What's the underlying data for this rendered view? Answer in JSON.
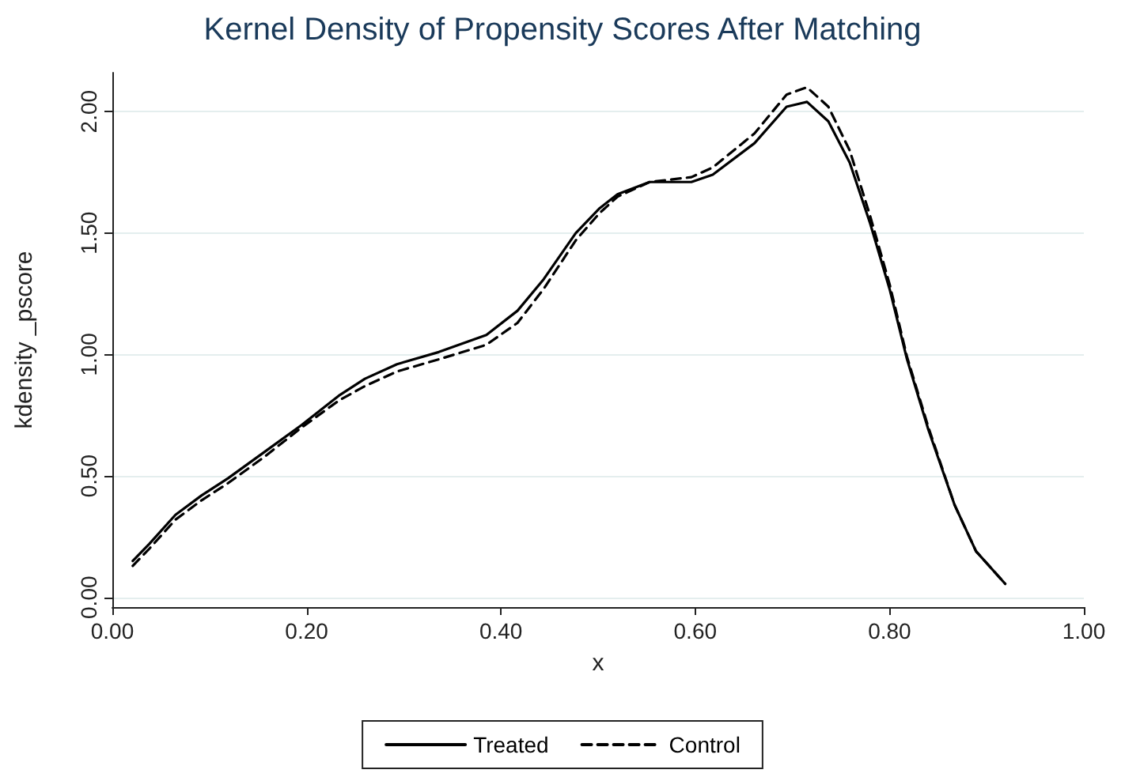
{
  "chart_data": {
    "type": "line",
    "title": "Kernel Density of Propensity Scores After Matching",
    "xlabel": "x",
    "ylabel": "kdensity _pscore",
    "xlim": [
      0,
      1
    ],
    "xticks": [
      {
        "value": 0,
        "label": "0.00"
      },
      {
        "value": 0.2,
        "label": "0.20"
      },
      {
        "value": 0.4,
        "label": "0.40"
      },
      {
        "value": 0.6,
        "label": "0.60"
      },
      {
        "value": 0.8,
        "label": "0.80"
      },
      {
        "value": 1,
        "label": "1.00"
      }
    ],
    "ylim": [
      -0.04,
      2.16
    ],
    "yticks": [
      {
        "value": 0,
        "label": "0.00"
      },
      {
        "value": 0.5,
        "label": "0.50"
      },
      {
        "value": 1,
        "label": "1.00"
      },
      {
        "value": 1.5,
        "label": "1.50"
      },
      {
        "value": 2,
        "label": "2.00"
      }
    ],
    "grid": "y",
    "legend": "bottom",
    "marker": "none",
    "series": [
      {
        "name": "Treated",
        "color": "#000000",
        "line_style": "solid",
        "x": [
          0.021,
          0.038,
          0.065,
          0.092,
          0.119,
          0.157,
          0.195,
          0.233,
          0.26,
          0.293,
          0.336,
          0.385,
          0.417,
          0.444,
          0.477,
          0.501,
          0.52,
          0.553,
          0.596,
          0.618,
          0.661,
          0.694,
          0.715,
          0.737,
          0.759,
          0.78,
          0.8,
          0.818,
          0.84,
          0.867,
          0.889,
          0.919
        ],
        "values": [
          0.15,
          0.22,
          0.34,
          0.42,
          0.49,
          0.6,
          0.71,
          0.83,
          0.9,
          0.96,
          1.01,
          1.08,
          1.18,
          1.31,
          1.5,
          1.6,
          1.66,
          1.71,
          1.71,
          1.74,
          1.87,
          2.02,
          2.04,
          1.96,
          1.79,
          1.54,
          1.27,
          0.98,
          0.69,
          0.38,
          0.19,
          0.056
        ]
      },
      {
        "name": "Control",
        "color": "#000000",
        "line_style": "dashed",
        "x": [
          0.021,
          0.038,
          0.065,
          0.092,
          0.119,
          0.157,
          0.195,
          0.233,
          0.26,
          0.293,
          0.336,
          0.385,
          0.417,
          0.444,
          0.477,
          0.501,
          0.52,
          0.553,
          0.596,
          0.618,
          0.661,
          0.694,
          0.715,
          0.737,
          0.759,
          0.78,
          0.8,
          0.818,
          0.84,
          0.867,
          0.889,
          0.919
        ],
        "values": [
          0.13,
          0.2,
          0.32,
          0.4,
          0.47,
          0.58,
          0.7,
          0.81,
          0.87,
          0.93,
          0.98,
          1.04,
          1.13,
          1.27,
          1.47,
          1.58,
          1.65,
          1.71,
          1.73,
          1.77,
          1.91,
          2.07,
          2.1,
          2.02,
          1.84,
          1.57,
          1.29,
          0.99,
          0.7,
          0.38,
          0.19,
          0.056
        ]
      }
    ]
  }
}
